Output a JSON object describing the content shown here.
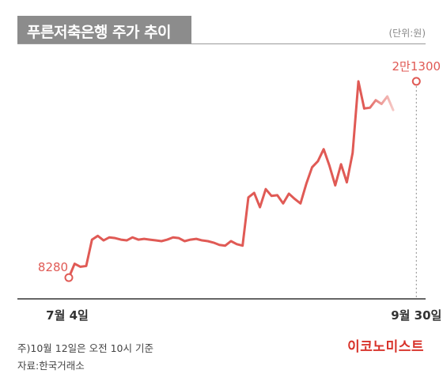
{
  "header": {
    "title": "푸른저축은행 주가 추이",
    "unit": "(단위:원)"
  },
  "chart_data": {
    "type": "line",
    "title": "푸른저축은행 주가 추이",
    "unit": "(단위:원)",
    "xlabel": "",
    "ylabel": "",
    "x_tick_labels": [
      "7월 4일",
      "9월 30일"
    ],
    "ylim": [
      7500,
      22500
    ],
    "grid": false,
    "annotations": [
      {
        "label": "8280",
        "value": 8280,
        "index": 0
      },
      {
        "label": "2만1300",
        "value": 21300,
        "index": 60
      }
    ],
    "series": [
      {
        "values": [
          8280,
          9200,
          9000,
          9050,
          10800,
          11050,
          10750,
          10950,
          10900,
          10800,
          10750,
          10950,
          10800,
          10850,
          10800,
          10750,
          10700,
          10800,
          10950,
          10900,
          10700,
          10800,
          10850,
          10750,
          10700,
          10600,
          10450,
          10400,
          10700,
          10500,
          10400,
          13600,
          13900,
          12950,
          14150,
          13700,
          13750,
          13200,
          13850,
          13500,
          13200,
          14500,
          15600,
          16000,
          16800,
          15700,
          14400,
          15800,
          14600,
          16550,
          21300,
          19500,
          19550,
          20050,
          19800,
          20300,
          19400
        ],
        "faded_from_index": 51
      }
    ]
  },
  "footer": {
    "note": "주)10월 12일은 오전 10시 기준",
    "source": "자료:한국거래소",
    "logo": "이코노미스트"
  },
  "colors": {
    "line": "#e05a55",
    "line_faded": "#f2b6b2",
    "marker_stroke": "#e05a55",
    "logo": "#d8332b",
    "axis": "#333333"
  }
}
